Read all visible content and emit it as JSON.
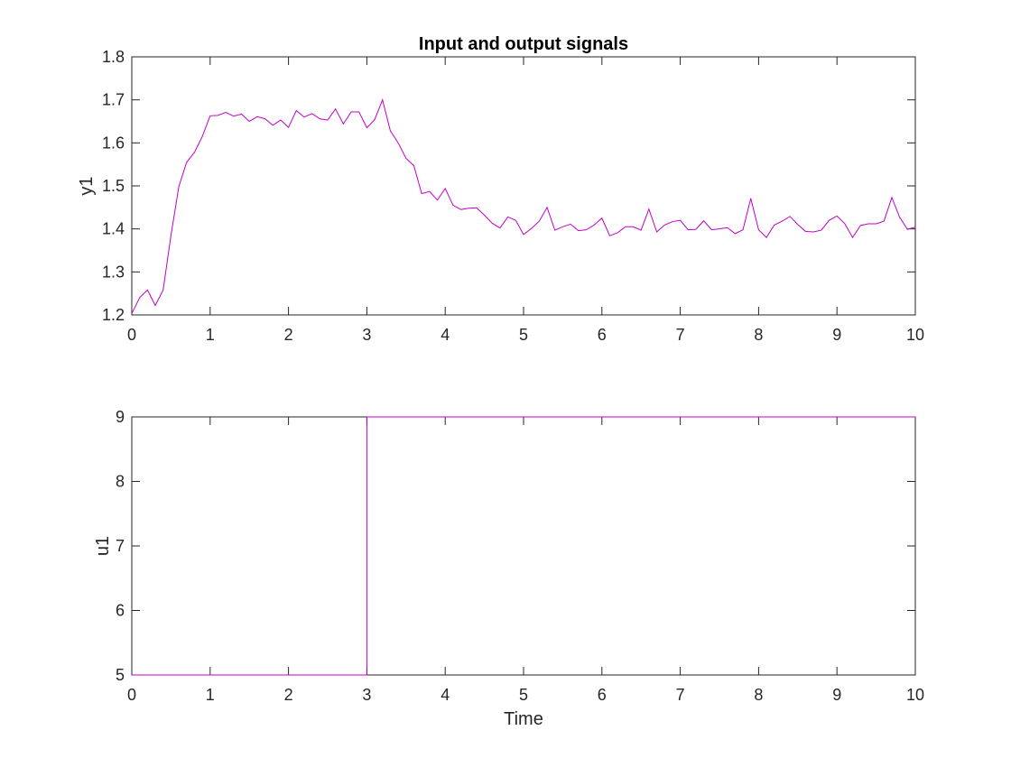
{
  "title": "Input and output signals",
  "colors": {
    "series": "#c000c8",
    "axes": "#262626",
    "background": "#ffffff"
  },
  "chart_data": [
    {
      "type": "line",
      "title": "Input and output signals",
      "xlabel": "",
      "ylabel": "y1",
      "xlim": [
        0,
        10
      ],
      "ylim": [
        1.2,
        1.8
      ],
      "xticks": [
        "0",
        "1",
        "2",
        "3",
        "4",
        "5",
        "6",
        "7",
        "8",
        "9",
        "10"
      ],
      "yticks": [
        "1.2",
        "1.3",
        "1.4",
        "1.5",
        "1.6",
        "1.7",
        "1.8"
      ],
      "grid": false,
      "series": [
        {
          "x": [
            0,
            0.1,
            0.2,
            0.3,
            0.4,
            0.5,
            0.6,
            0.7,
            0.8,
            0.9,
            1.0,
            1.1,
            1.2,
            1.3,
            1.4,
            1.5,
            1.6,
            1.7,
            1.8,
            1.9,
            2.0,
            2.1,
            2.2,
            2.3,
            2.4,
            2.5,
            2.6,
            2.7,
            2.8,
            2.9,
            3.0,
            3.1,
            3.2,
            3.3,
            3.4,
            3.5,
            3.6,
            3.7,
            3.8,
            3.9,
            4.0,
            4.1,
            4.2,
            4.3,
            4.4,
            4.5,
            4.6,
            4.7,
            4.8,
            4.9,
            5.0,
            5.1,
            5.2,
            5.3,
            5.4,
            5.5,
            5.6,
            5.7,
            5.8,
            5.9,
            6.0,
            6.1,
            6.2,
            6.3,
            6.4,
            6.5,
            6.6,
            6.7,
            6.8,
            6.9,
            7.0,
            7.1,
            7.2,
            7.3,
            7.4,
            7.5,
            7.6,
            7.7,
            7.8,
            7.9,
            8.0,
            8.1,
            8.2,
            8.3,
            8.4,
            8.5,
            8.6,
            8.7,
            8.8,
            8.9,
            9.0,
            9.1,
            9.2,
            9.3,
            9.4,
            9.5,
            9.6,
            9.7,
            9.8,
            9.9,
            10.0
          ],
          "values": [
            1.203,
            1.24,
            1.258,
            1.222,
            1.258,
            1.385,
            1.498,
            1.555,
            1.578,
            1.615,
            1.663,
            1.664,
            1.671,
            1.662,
            1.667,
            1.65,
            1.661,
            1.656,
            1.641,
            1.653,
            1.636,
            1.675,
            1.66,
            1.668,
            1.656,
            1.653,
            1.679,
            1.644,
            1.672,
            1.672,
            1.635,
            1.654,
            1.7,
            1.628,
            1.6,
            1.564,
            1.547,
            1.482,
            1.487,
            1.467,
            1.494,
            1.455,
            1.445,
            1.448,
            1.449,
            1.432,
            1.413,
            1.402,
            1.428,
            1.42,
            1.387,
            1.401,
            1.418,
            1.45,
            1.397,
            1.405,
            1.411,
            1.396,
            1.398,
            1.409,
            1.425,
            1.384,
            1.391,
            1.405,
            1.405,
            1.397,
            1.446,
            1.393,
            1.409,
            1.417,
            1.42,
            1.398,
            1.399,
            1.419,
            1.398,
            1.4,
            1.403,
            1.389,
            1.398,
            1.471,
            1.398,
            1.38,
            1.409,
            1.418,
            1.429,
            1.41,
            1.394,
            1.393,
            1.397,
            1.42,
            1.43,
            1.412,
            1.38,
            1.408,
            1.412,
            1.412,
            1.418,
            1.473,
            1.427,
            1.399,
            1.404
          ]
        }
      ]
    },
    {
      "type": "line",
      "title": "",
      "xlabel": "Time",
      "ylabel": "u1",
      "xlim": [
        0,
        10
      ],
      "ylim": [
        5,
        9
      ],
      "xticks": [
        "0",
        "1",
        "2",
        "3",
        "4",
        "5",
        "6",
        "7",
        "8",
        "9",
        "10"
      ],
      "yticks": [
        "5",
        "6",
        "7",
        "8",
        "9"
      ],
      "grid": false,
      "series": [
        {
          "x": [
            0,
            3,
            3,
            10
          ],
          "values": [
            5,
            5,
            9,
            9
          ]
        }
      ]
    }
  ]
}
